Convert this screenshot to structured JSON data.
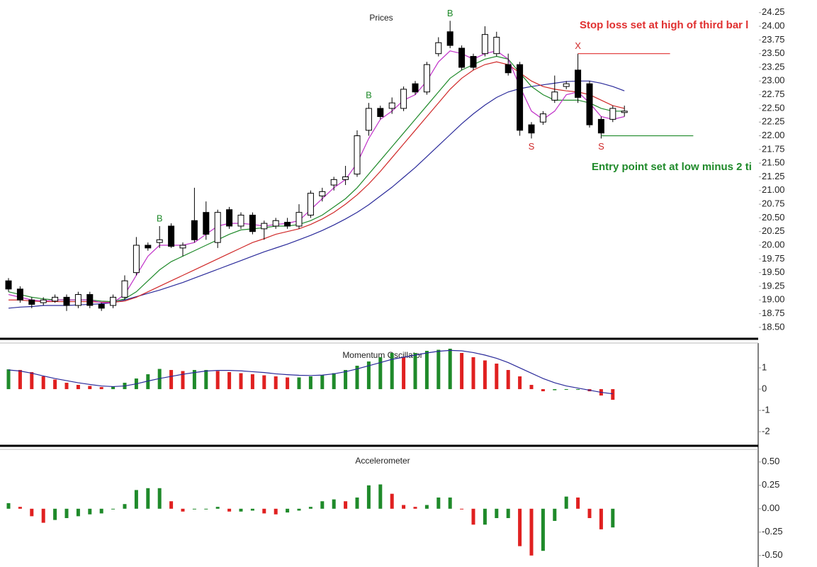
{
  "chart_data": [
    {
      "type": "candlestick",
      "title": "Prices",
      "open": [
        19.35,
        19.2,
        19.0,
        18.95,
        18.98,
        19.05,
        18.9,
        19.1,
        18.92,
        18.9,
        19.05,
        19.5,
        20.0,
        20.05,
        20.35,
        19.95,
        20.45,
        20.6,
        20.05,
        20.65,
        20.35,
        20.55,
        20.3,
        20.35,
        20.42,
        20.35,
        20.55,
        20.9,
        21.1,
        21.2,
        21.3,
        22.1,
        22.5,
        22.5,
        22.5,
        22.95,
        22.8,
        23.5,
        23.9,
        23.6,
        23.45,
        23.5,
        23.5,
        23.3,
        23.3,
        22.2,
        22.25,
        22.65,
        22.9,
        23.2,
        22.95,
        22.3,
        22.3,
        22.45
      ],
      "high": [
        19.4,
        19.25,
        19.05,
        19.05,
        19.1,
        19.1,
        19.15,
        19.15,
        18.95,
        19.1,
        19.45,
        20.15,
        20.05,
        20.35,
        20.4,
        20.05,
        21.05,
        20.8,
        20.65,
        20.7,
        20.6,
        20.6,
        20.45,
        20.5,
        20.5,
        20.75,
        21.0,
        21.05,
        21.25,
        21.45,
        22.1,
        22.6,
        22.55,
        22.7,
        22.9,
        23.0,
        23.35,
        23.8,
        24.1,
        23.65,
        23.5,
        24.0,
        23.9,
        23.5,
        23.35,
        22.25,
        22.45,
        23.1,
        23.0,
        23.5,
        23.0,
        22.35,
        22.55,
        22.55
      ],
      "low": [
        19.15,
        18.95,
        18.85,
        18.9,
        18.95,
        18.8,
        18.85,
        18.85,
        18.8,
        18.85,
        19.0,
        19.45,
        19.9,
        19.95,
        19.95,
        19.8,
        20.05,
        20.1,
        19.95,
        20.3,
        20.3,
        20.2,
        20.1,
        20.3,
        20.3,
        20.3,
        20.5,
        20.8,
        21.0,
        21.1,
        21.25,
        22.0,
        22.3,
        22.4,
        22.45,
        22.75,
        22.75,
        23.45,
        23.6,
        23.2,
        23.2,
        23.45,
        23.45,
        23.1,
        22.0,
        21.95,
        22.2,
        22.6,
        22.85,
        22.6,
        22.15,
        21.95,
        22.25,
        22.35
      ],
      "close": [
        19.2,
        19.0,
        18.92,
        19.0,
        19.05,
        18.9,
        19.1,
        18.9,
        18.85,
        19.05,
        19.35,
        20.0,
        19.95,
        20.1,
        19.98,
        20.0,
        20.1,
        20.2,
        20.6,
        20.35,
        20.55,
        20.25,
        20.4,
        20.45,
        20.35,
        20.6,
        20.95,
        20.98,
        21.2,
        21.25,
        22.0,
        22.5,
        22.35,
        22.6,
        22.85,
        22.8,
        23.3,
        23.7,
        23.65,
        23.25,
        23.25,
        23.85,
        23.8,
        23.15,
        22.1,
        22.05,
        22.4,
        22.8,
        22.95,
        22.7,
        22.2,
        22.05,
        22.5,
        22.45
      ],
      "lines": [
        {
          "color": "#2a2a9a",
          "values": [
            18.85,
            18.87,
            18.88,
            18.9,
            18.9,
            18.9,
            18.91,
            18.92,
            18.93,
            18.95,
            19.0,
            19.06,
            19.12,
            19.18,
            19.25,
            19.32,
            19.4,
            19.48,
            19.56,
            19.64,
            19.72,
            19.8,
            19.88,
            19.95,
            20.02,
            20.1,
            20.18,
            20.27,
            20.37,
            20.48,
            20.6,
            20.74,
            20.9,
            21.06,
            21.24,
            21.42,
            21.62,
            21.82,
            22.02,
            22.22,
            22.4,
            22.56,
            22.7,
            22.8,
            22.86,
            22.9,
            22.93,
            22.96,
            22.99,
            23.0,
            23.0,
            22.96,
            22.9,
            22.82
          ]
        },
        {
          "color": "#d02828",
          "values": [
            19.0,
            19.0,
            18.98,
            18.97,
            18.97,
            18.97,
            18.97,
            18.97,
            18.96,
            18.96,
            18.98,
            19.05,
            19.15,
            19.25,
            19.35,
            19.45,
            19.55,
            19.65,
            19.75,
            19.85,
            19.95,
            20.05,
            20.12,
            20.2,
            20.25,
            20.3,
            20.38,
            20.48,
            20.6,
            20.75,
            20.92,
            21.12,
            21.35,
            21.6,
            21.85,
            22.1,
            22.35,
            22.6,
            22.85,
            23.05,
            23.2,
            23.3,
            23.35,
            23.3,
            23.15,
            23.0,
            22.9,
            22.85,
            22.82,
            22.8,
            22.75,
            22.65,
            22.55,
            22.5
          ]
        },
        {
          "color": "#1f8a2a",
          "values": [
            19.15,
            19.1,
            19.05,
            19.02,
            19.0,
            19.0,
            19.0,
            19.0,
            18.98,
            18.97,
            19.02,
            19.15,
            19.35,
            19.55,
            19.7,
            19.8,
            19.9,
            20.0,
            20.1,
            20.2,
            20.28,
            20.3,
            20.32,
            20.35,
            20.35,
            20.38,
            20.45,
            20.55,
            20.7,
            20.85,
            21.05,
            21.3,
            21.55,
            21.8,
            22.05,
            22.3,
            22.55,
            22.8,
            23.05,
            23.2,
            23.3,
            23.4,
            23.45,
            23.4,
            23.15,
            22.9,
            22.75,
            22.65,
            22.65,
            22.65,
            22.6,
            22.5,
            22.45,
            22.45
          ]
        },
        {
          "color": "#c030c8",
          "values": [
            19.1,
            19.05,
            19.0,
            18.98,
            19.0,
            19.0,
            19.0,
            19.0,
            18.95,
            18.95,
            19.1,
            19.45,
            19.8,
            20.0,
            20.0,
            20.0,
            20.05,
            20.2,
            20.35,
            20.4,
            20.4,
            20.38,
            20.35,
            20.38,
            20.4,
            20.45,
            20.65,
            20.85,
            21.05,
            21.2,
            21.5,
            21.95,
            22.3,
            22.45,
            22.65,
            22.75,
            23.0,
            23.35,
            23.55,
            23.5,
            23.4,
            23.5,
            23.55,
            23.4,
            22.9,
            22.45,
            22.3,
            22.45,
            22.75,
            22.8,
            22.6,
            22.35,
            22.3,
            22.35
          ]
        }
      ],
      "annotations": [
        {
          "text": "B",
          "index": 13,
          "color": "#1f8a2a",
          "position": "above"
        },
        {
          "text": "B",
          "index": 31,
          "color": "#1f8a2a",
          "position": "above"
        },
        {
          "text": "B",
          "index": 38,
          "color": "#1f8a2a",
          "position": "above"
        },
        {
          "text": "S",
          "index": 45,
          "color": "#d02828",
          "position": "below"
        },
        {
          "text": "S",
          "index": 51,
          "color": "#d02828",
          "position": "below"
        },
        {
          "text": "X",
          "index": 49,
          "color": "#d02828",
          "position": "above"
        }
      ],
      "levels": [
        {
          "value": 23.5,
          "index": 49,
          "color": "#e03030"
        },
        {
          "value": 22.0,
          "index": 51,
          "color": "#1f8a2a"
        }
      ],
      "notes": [
        {
          "text": "Stop loss set at high of third bar l",
          "color": "#e03030"
        },
        {
          "text": "Entry point set at low minus 2 ti",
          "color": "#1f8a2a"
        }
      ],
      "ylim": [
        18.33,
        24.48
      ],
      "yticks": [
        24.25,
        {
          "value": 24,
          "label": "24.00"
        },
        23.75,
        {
          "value": 23.5,
          "label": "23.50"
        },
        23.25,
        {
          "value": 23,
          "label": "23.00"
        },
        22.75,
        {
          "value": 22.5,
          "label": "22.50"
        },
        22.25,
        {
          "value": 22,
          "label": "22.00"
        },
        21.75,
        {
          "value": 21.5,
          "label": "21.50"
        },
        21.25,
        {
          "value": 21,
          "label": "21.00"
        },
        20.75,
        {
          "value": 20.5,
          "label": "20.50"
        },
        20.25,
        {
          "value": 20,
          "label": "20.00"
        },
        19.75,
        {
          "value": 19.5,
          "label": "19.50"
        },
        19.25,
        {
          "value": 19,
          "label": "19.00"
        },
        18.75,
        {
          "value": 18.5,
          "label": "18.50"
        }
      ]
    },
    {
      "type": "bar",
      "title": "Momentum Oscillator",
      "up_color": "#1f8a2a",
      "down_color": "#e02020",
      "values": [
        0.93,
        0.9,
        0.8,
        0.6,
        0.45,
        0.3,
        0.2,
        0.15,
        0.1,
        0.12,
        0.3,
        0.5,
        0.7,
        0.95,
        0.9,
        0.85,
        0.9,
        0.9,
        0.85,
        0.8,
        0.75,
        0.7,
        0.65,
        0.6,
        0.55,
        0.55,
        0.6,
        0.65,
        0.75,
        0.9,
        1.1,
        1.3,
        1.5,
        1.7,
        1.5,
        1.7,
        1.8,
        1.85,
        1.9,
        1.7,
        1.5,
        1.35,
        1.2,
        0.9,
        0.6,
        0.2,
        -0.1,
        -0.05,
        0,
        0,
        -0.1,
        -0.3,
        -0.5
      ],
      "signal_line": {
        "color": "#2a2a9a",
        "values": [
          0.9,
          0.85,
          0.75,
          0.62,
          0.5,
          0.4,
          0.3,
          0.22,
          0.15,
          0.12,
          0.15,
          0.25,
          0.38,
          0.5,
          0.6,
          0.7,
          0.78,
          0.85,
          0.88,
          0.88,
          0.86,
          0.82,
          0.78,
          0.72,
          0.68,
          0.65,
          0.64,
          0.66,
          0.72,
          0.82,
          0.95,
          1.1,
          1.25,
          1.4,
          1.5,
          1.6,
          1.7,
          1.78,
          1.82,
          1.8,
          1.72,
          1.6,
          1.45,
          1.25,
          1.0,
          0.75,
          0.5,
          0.3,
          0.15,
          0.05,
          -0.05,
          -0.15,
          -0.22
        ]
      },
      "ylim": [
        -2.53,
        2.1
      ],
      "yticks": [
        1,
        0,
        -1,
        -2
      ]
    },
    {
      "type": "bar",
      "title": "Accelerometer",
      "up_color": "#1f8a2a",
      "down_color": "#e02020",
      "values": [
        0.06,
        0.02,
        -0.08,
        -0.15,
        -0.12,
        -0.1,
        -0.08,
        -0.06,
        -0.05,
        0.0,
        0.05,
        0.2,
        0.22,
        0.22,
        0.08,
        -0.03,
        0,
        0,
        0.02,
        -0.03,
        -0.03,
        -0.02,
        -0.05,
        -0.06,
        -0.04,
        -0.02,
        0.02,
        0.08,
        0.1,
        0.08,
        0.12,
        0.25,
        0.26,
        0.16,
        0.04,
        0.02,
        0.04,
        0.12,
        0.12,
        0,
        -0.17,
        -0.17,
        -0.1,
        -0.1,
        -0.4,
        -0.5,
        -0.45,
        -0.13,
        0.13,
        0.12,
        -0.1,
        -0.22,
        -0.2
      ],
      "ylim": [
        -0.6,
        0.65
      ],
      "yticks": [
        {
          "value": 0.5,
          "label": "0.50"
        },
        0.25,
        {
          "value": 0,
          "label": "0.00"
        },
        -0.25,
        {
          "value": -0.5,
          "label": "-0.50"
        }
      ]
    }
  ]
}
